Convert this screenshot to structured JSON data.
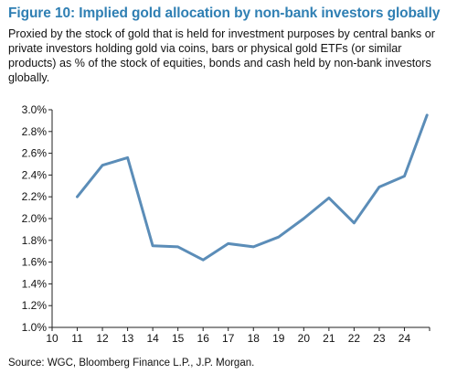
{
  "chart_data": {
    "type": "line",
    "title": "Figure 10: Implied gold allocation by non-bank investors globally",
    "subtitle": [
      "Proxied by the stock of gold that is held for investment purposes by central banks or",
      "private investors holding gold via coins, bars or physical gold ETFs (or similar",
      "products) as % of the stock of equities, bonds and cash held by non-bank investors",
      "globally."
    ],
    "source": "Source: WGC, Bloomberg Finance L.P., J.P. Morgan.",
    "x_ticks": [
      "10",
      "11",
      "12",
      "13",
      "14",
      "15",
      "16",
      "17",
      "18",
      "19",
      "20",
      "21",
      "22",
      "23",
      "24"
    ],
    "y_ticks": [
      "1.0%",
      "1.2%",
      "1.4%",
      "1.6%",
      "1.8%",
      "2.0%",
      "2.2%",
      "2.4%",
      "2.6%",
      "2.8%",
      "3.0%"
    ],
    "xlim": [
      10,
      25
    ],
    "ylim": [
      1.0,
      3.0
    ],
    "series": [
      {
        "color": "#5b8db8",
        "x": [
          11,
          12,
          13,
          14,
          15,
          16,
          17,
          18,
          19,
          20,
          21,
          22,
          23,
          24,
          24.9
        ],
        "y": [
          2.2,
          2.49,
          2.56,
          1.75,
          1.74,
          1.62,
          1.77,
          1.74,
          1.83,
          2.0,
          2.19,
          1.96,
          2.29,
          2.39,
          2.95
        ]
      }
    ]
  }
}
